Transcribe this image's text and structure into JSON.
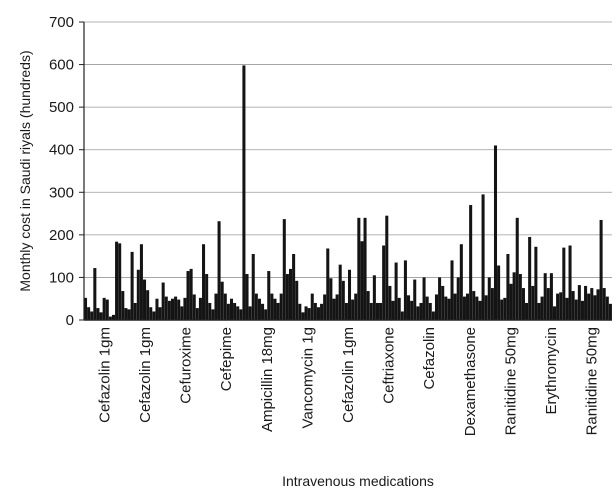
{
  "chart_data": {
    "type": "bar",
    "title": "",
    "xlabel": "Intravenous medications",
    "ylabel": "Monthly cost in Saudi riyals (hundreds)",
    "ylim": [
      0,
      700
    ],
    "yticks": [
      0,
      100,
      200,
      300,
      400,
      500,
      600,
      700
    ],
    "grid": true,
    "category_labels": [
      "Cefazolin 1gm",
      "Cefazolin 1gm",
      "Cefuroxime",
      "Cefepime",
      "Ampicillin 18mg",
      "Vancomycin 1g",
      "Cefazolin 1gm",
      "Ceftriaxone",
      "Cefazolin",
      "Dexamethasone",
      "Ranitidine 50mg",
      "Erythromycin",
      "Ranitidine 50mg"
    ],
    "values": [
      52,
      30,
      20,
      122,
      28,
      18,
      52,
      48,
      8,
      12,
      184,
      180,
      68,
      28,
      25,
      160,
      40,
      118,
      178,
      95,
      70,
      30,
      20,
      50,
      30,
      88,
      55,
      45,
      50,
      55,
      48,
      32,
      52,
      115,
      120,
      60,
      28,
      52,
      178,
      108,
      40,
      25,
      62,
      232,
      90,
      62,
      38,
      50,
      40,
      32,
      25,
      598,
      108,
      32,
      155,
      62,
      50,
      38,
      25,
      115,
      62,
      50,
      40,
      62,
      237,
      108,
      120,
      155,
      92,
      38,
      18,
      32,
      28,
      62,
      40,
      30,
      38,
      60,
      168,
      98,
      50,
      60,
      130,
      92,
      40,
      118,
      48,
      62,
      240,
      185,
      240,
      68,
      40,
      105,
      40,
      40,
      175,
      245,
      80,
      45,
      135,
      52,
      20,
      140,
      58,
      45,
      95,
      32,
      40,
      100,
      55,
      40,
      20,
      60,
      100,
      80,
      55,
      50,
      140,
      62,
      100,
      178,
      55,
      62,
      270,
      68,
      55,
      45,
      295,
      58,
      100,
      75,
      410,
      128,
      48,
      52,
      155,
      85,
      112,
      240,
      108,
      75,
      40,
      195,
      80,
      172,
      40,
      55,
      110,
      75,
      110,
      32,
      62,
      65,
      170,
      52,
      175,
      68,
      48,
      82,
      45,
      80,
      62,
      75,
      58,
      72,
      235,
      75,
      55,
      38
    ]
  }
}
